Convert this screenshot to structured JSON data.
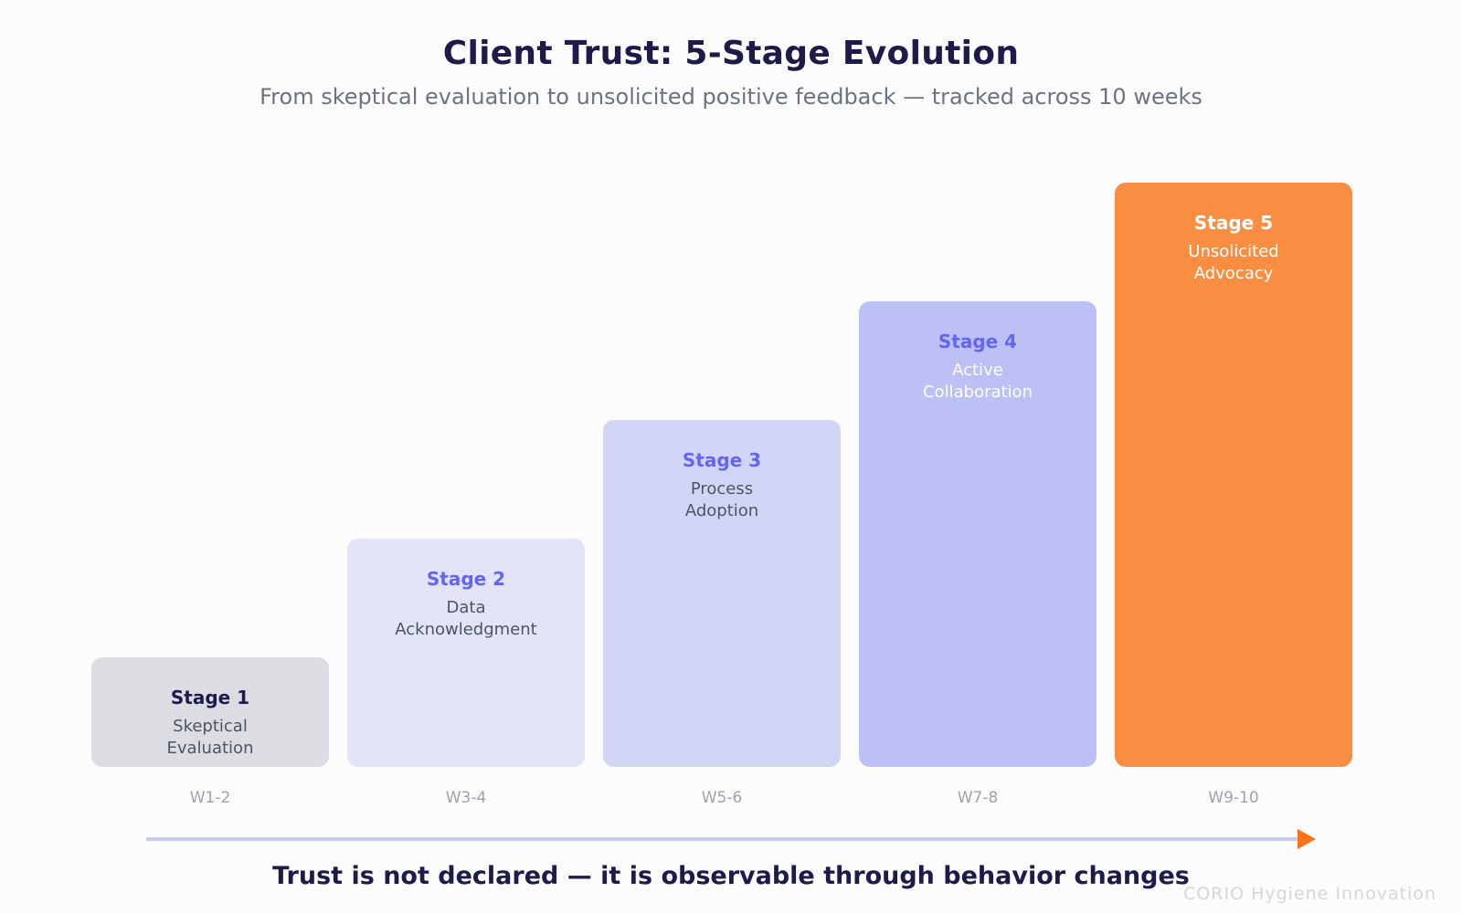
{
  "header": {
    "title": "Client Trust: 5-Stage Evolution",
    "subtitle": "From skeptical evaluation to unsolicited positive feedback — tracked across 10 weeks"
  },
  "stages": [
    {
      "name": "Stage 1",
      "description": "Skeptical\nEvaluation",
      "weeks": "W1-2",
      "level": 1,
      "fill": "#dcdce2",
      "name_color": "#1e1b4b",
      "desc_color": "#4b5563"
    },
    {
      "name": "Stage 2",
      "description": "Data\nAcknowledgment",
      "weeks": "W3-4",
      "level": 2,
      "fill": "#e3e4f9",
      "name_color": "#6366f1",
      "desc_color": "#4b5563"
    },
    {
      "name": "Stage 3",
      "description": "Process\nAdoption",
      "weeks": "W5-6",
      "level": 3,
      "fill": "#d3d5f7",
      "name_color": "#6366f1",
      "desc_color": "#4b5563"
    },
    {
      "name": "Stage 4",
      "description": "Active\nCollaboration",
      "weeks": "W7-8",
      "level": 4,
      "fill": "#bdc0f5",
      "name_color": "#6366f1",
      "desc_color": "#ffffff"
    },
    {
      "name": "Stage 5",
      "description": "Unsolicited\nAdvocacy",
      "weeks": "W9-10",
      "level": 5,
      "fill": "#f98e42",
      "name_color": "#ffffff",
      "desc_color": "#ffffff"
    }
  ],
  "timeline": {
    "line_color": "#c7cbf1",
    "arrow_color": "#f97316"
  },
  "footer": {
    "tagline": "Trust is not declared — it is observable through behavior changes"
  },
  "watermark": "CORIO Hygiene Innovation"
}
